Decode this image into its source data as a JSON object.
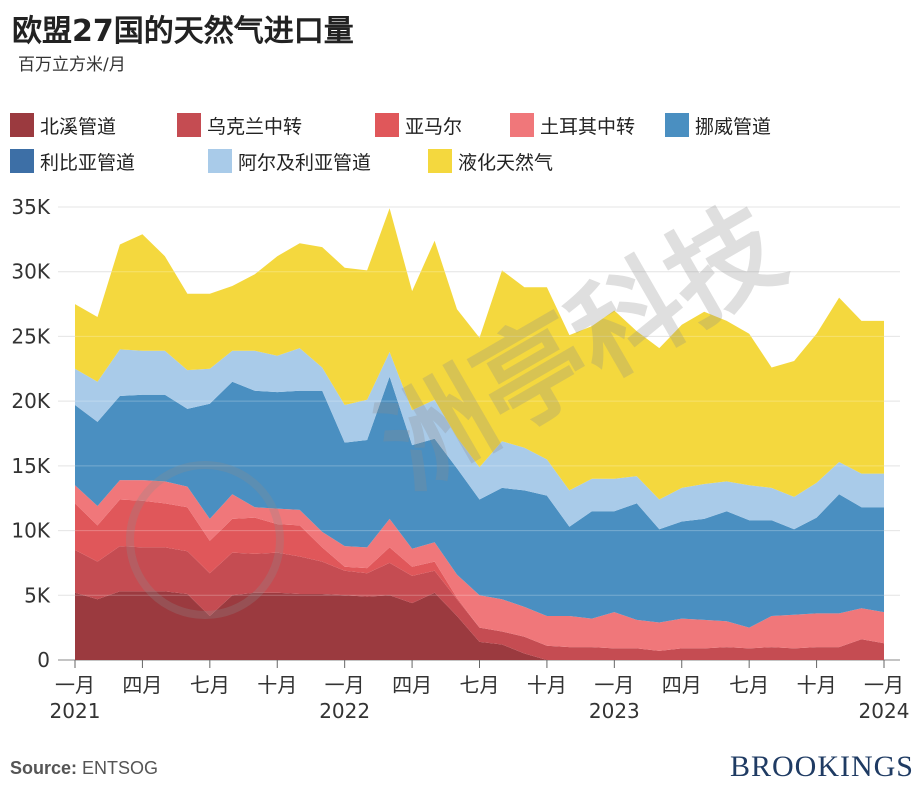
{
  "header": {
    "title": "欧盟27国的天然气进口量",
    "subtitle": "百万立方米/月"
  },
  "footer": {
    "source_label": "Source:",
    "source_value": "ENTSOG",
    "brand": "BROOKINGS"
  },
  "watermark": "洲亭科技",
  "chart_data": {
    "type": "area",
    "stacked": true,
    "x": [
      "2021-01",
      "2021-02",
      "2021-03",
      "2021-04",
      "2021-05",
      "2021-06",
      "2021-07",
      "2021-08",
      "2021-09",
      "2021-10",
      "2021-11",
      "2021-12",
      "2022-01",
      "2022-02",
      "2022-03",
      "2022-04",
      "2022-05",
      "2022-06",
      "2022-07",
      "2022-08",
      "2022-09",
      "2022-10",
      "2022-11",
      "2022-12",
      "2023-01",
      "2023-02",
      "2023-03",
      "2023-04",
      "2023-05",
      "2023-06",
      "2023-07",
      "2023-08",
      "2023-09",
      "2023-10",
      "2023-11",
      "2023-12",
      "2024-01"
    ],
    "ylim": [
      0,
      35000
    ],
    "yticks": [
      0,
      5000,
      10000,
      15000,
      20000,
      25000,
      30000,
      35000
    ],
    "ytick_labels": [
      "0",
      "5K",
      "10K",
      "15K",
      "20K",
      "25K",
      "30K",
      "35K"
    ],
    "xticks": [
      {
        "x": "2021-01",
        "label": "一月",
        "year": "2021"
      },
      {
        "x": "2021-04",
        "label": "四月",
        "year": ""
      },
      {
        "x": "2021-07",
        "label": "七月",
        "year": ""
      },
      {
        "x": "2021-10",
        "label": "十月",
        "year": ""
      },
      {
        "x": "2022-01",
        "label": "一月",
        "year": "2022"
      },
      {
        "x": "2022-04",
        "label": "四月",
        "year": ""
      },
      {
        "x": "2022-07",
        "label": "七月",
        "year": ""
      },
      {
        "x": "2022-10",
        "label": "十月",
        "year": ""
      },
      {
        "x": "2023-01",
        "label": "一月",
        "year": "2023"
      },
      {
        "x": "2023-04",
        "label": "四月",
        "year": ""
      },
      {
        "x": "2023-07",
        "label": "七月",
        "year": ""
      },
      {
        "x": "2023-10",
        "label": "十月",
        "year": ""
      },
      {
        "x": "2024-01",
        "label": "一月",
        "year": "2024"
      }
    ],
    "grid": true,
    "legend_position": "top",
    "series": [
      {
        "name": "北溪管道",
        "color": "#9b3a3f",
        "values": [
          5200,
          4700,
          5300,
          5300,
          5300,
          5100,
          3400,
          5000,
          5200,
          5200,
          5100,
          5100,
          5000,
          4900,
          5000,
          4400,
          5200,
          3400,
          1400,
          1200,
          500,
          0,
          0,
          0,
          0,
          0,
          0,
          0,
          0,
          0,
          0,
          0,
          0,
          0,
          0,
          0,
          0
        ]
      },
      {
        "name": "乌克兰中转",
        "color": "#c54c52",
        "values": [
          3300,
          2900,
          3500,
          3400,
          3400,
          3300,
          3300,
          3300,
          3000,
          3100,
          2900,
          2500,
          1900,
          1800,
          2500,
          2100,
          1700,
          1300,
          1100,
          1000,
          1300,
          1100,
          1000,
          1000,
          900,
          900,
          700,
          900,
          900,
          1000,
          900,
          1000,
          900,
          1000,
          1000,
          1600,
          1300
        ]
      },
      {
        "name": "亚马尔",
        "color": "#e0575a",
        "values": [
          3600,
          2800,
          3600,
          3600,
          3400,
          3400,
          2500,
          2600,
          2800,
          2200,
          2400,
          1100,
          300,
          400,
          1200,
          700,
          700,
          100,
          0,
          0,
          0,
          0,
          0,
          0,
          0,
          0,
          0,
          0,
          0,
          0,
          0,
          0,
          0,
          0,
          0,
          0,
          0
        ]
      },
      {
        "name": "土耳其中转",
        "color": "#f0777a",
        "values": [
          1400,
          1500,
          1500,
          1600,
          1700,
          1600,
          1700,
          1900,
          800,
          1200,
          1200,
          1200,
          1600,
          1600,
          2200,
          1400,
          1500,
          1800,
          2500,
          2500,
          2300,
          2300,
          2400,
          2200,
          2800,
          2200,
          2200,
          2300,
          2200,
          2000,
          1600,
          2400,
          2600,
          2600,
          2600,
          2400,
          2400
        ]
      },
      {
        "name": "挪威管道",
        "color": "#4a8fc1",
        "values": [
          6200,
          6500,
          6500,
          6600,
          6700,
          6000,
          8900,
          8700,
          9000,
          9000,
          9200,
          10900,
          8000,
          8300,
          11000,
          8000,
          8000,
          8200,
          7400,
          8600,
          9000,
          9300,
          6900,
          8300,
          7800,
          9000,
          7200,
          7500,
          7800,
          8500,
          8300,
          7400,
          6600,
          7400,
          9200,
          7800,
          8100
        ]
      },
      {
        "name": "利比亚管道",
        "color": "#3d6fa6",
        "values": [
          0,
          0,
          0,
          0,
          0,
          0,
          0,
          0,
          0,
          0,
          0,
          0,
          0,
          0,
          0,
          0,
          0,
          0,
          0,
          0,
          0,
          0,
          0,
          0,
          0,
          0,
          0,
          0,
          0,
          0,
          0,
          0,
          0,
          0,
          0,
          0,
          0
        ]
      },
      {
        "name": "阿尔及利亚管道",
        "color": "#a9cbe9",
        "values": [
          2800,
          3100,
          3600,
          3400,
          3400,
          3000,
          2700,
          2400,
          3100,
          2800,
          3300,
          1800,
          2900,
          3100,
          1900,
          2700,
          3000,
          2400,
          2500,
          3600,
          3300,
          2800,
          2800,
          2500,
          2500,
          2100,
          2300,
          2600,
          2700,
          2300,
          2700,
          2500,
          2500,
          2700,
          2500,
          2600,
          2600
        ]
      },
      {
        "name": "液化天然气",
        "color": "#f4d83e",
        "values": [
          5000,
          5000,
          8100,
          9000,
          7300,
          5900,
          5800,
          5000,
          5900,
          7700,
          8100,
          9300,
          10600,
          10000,
          11100,
          9200,
          12300,
          9900,
          10000,
          13200,
          12400,
          13300,
          12000,
          11800,
          13000,
          11200,
          11700,
          12600,
          13300,
          12400,
          11700,
          9300,
          10500,
          11500,
          12700,
          11800,
          11800
        ]
      }
    ]
  }
}
